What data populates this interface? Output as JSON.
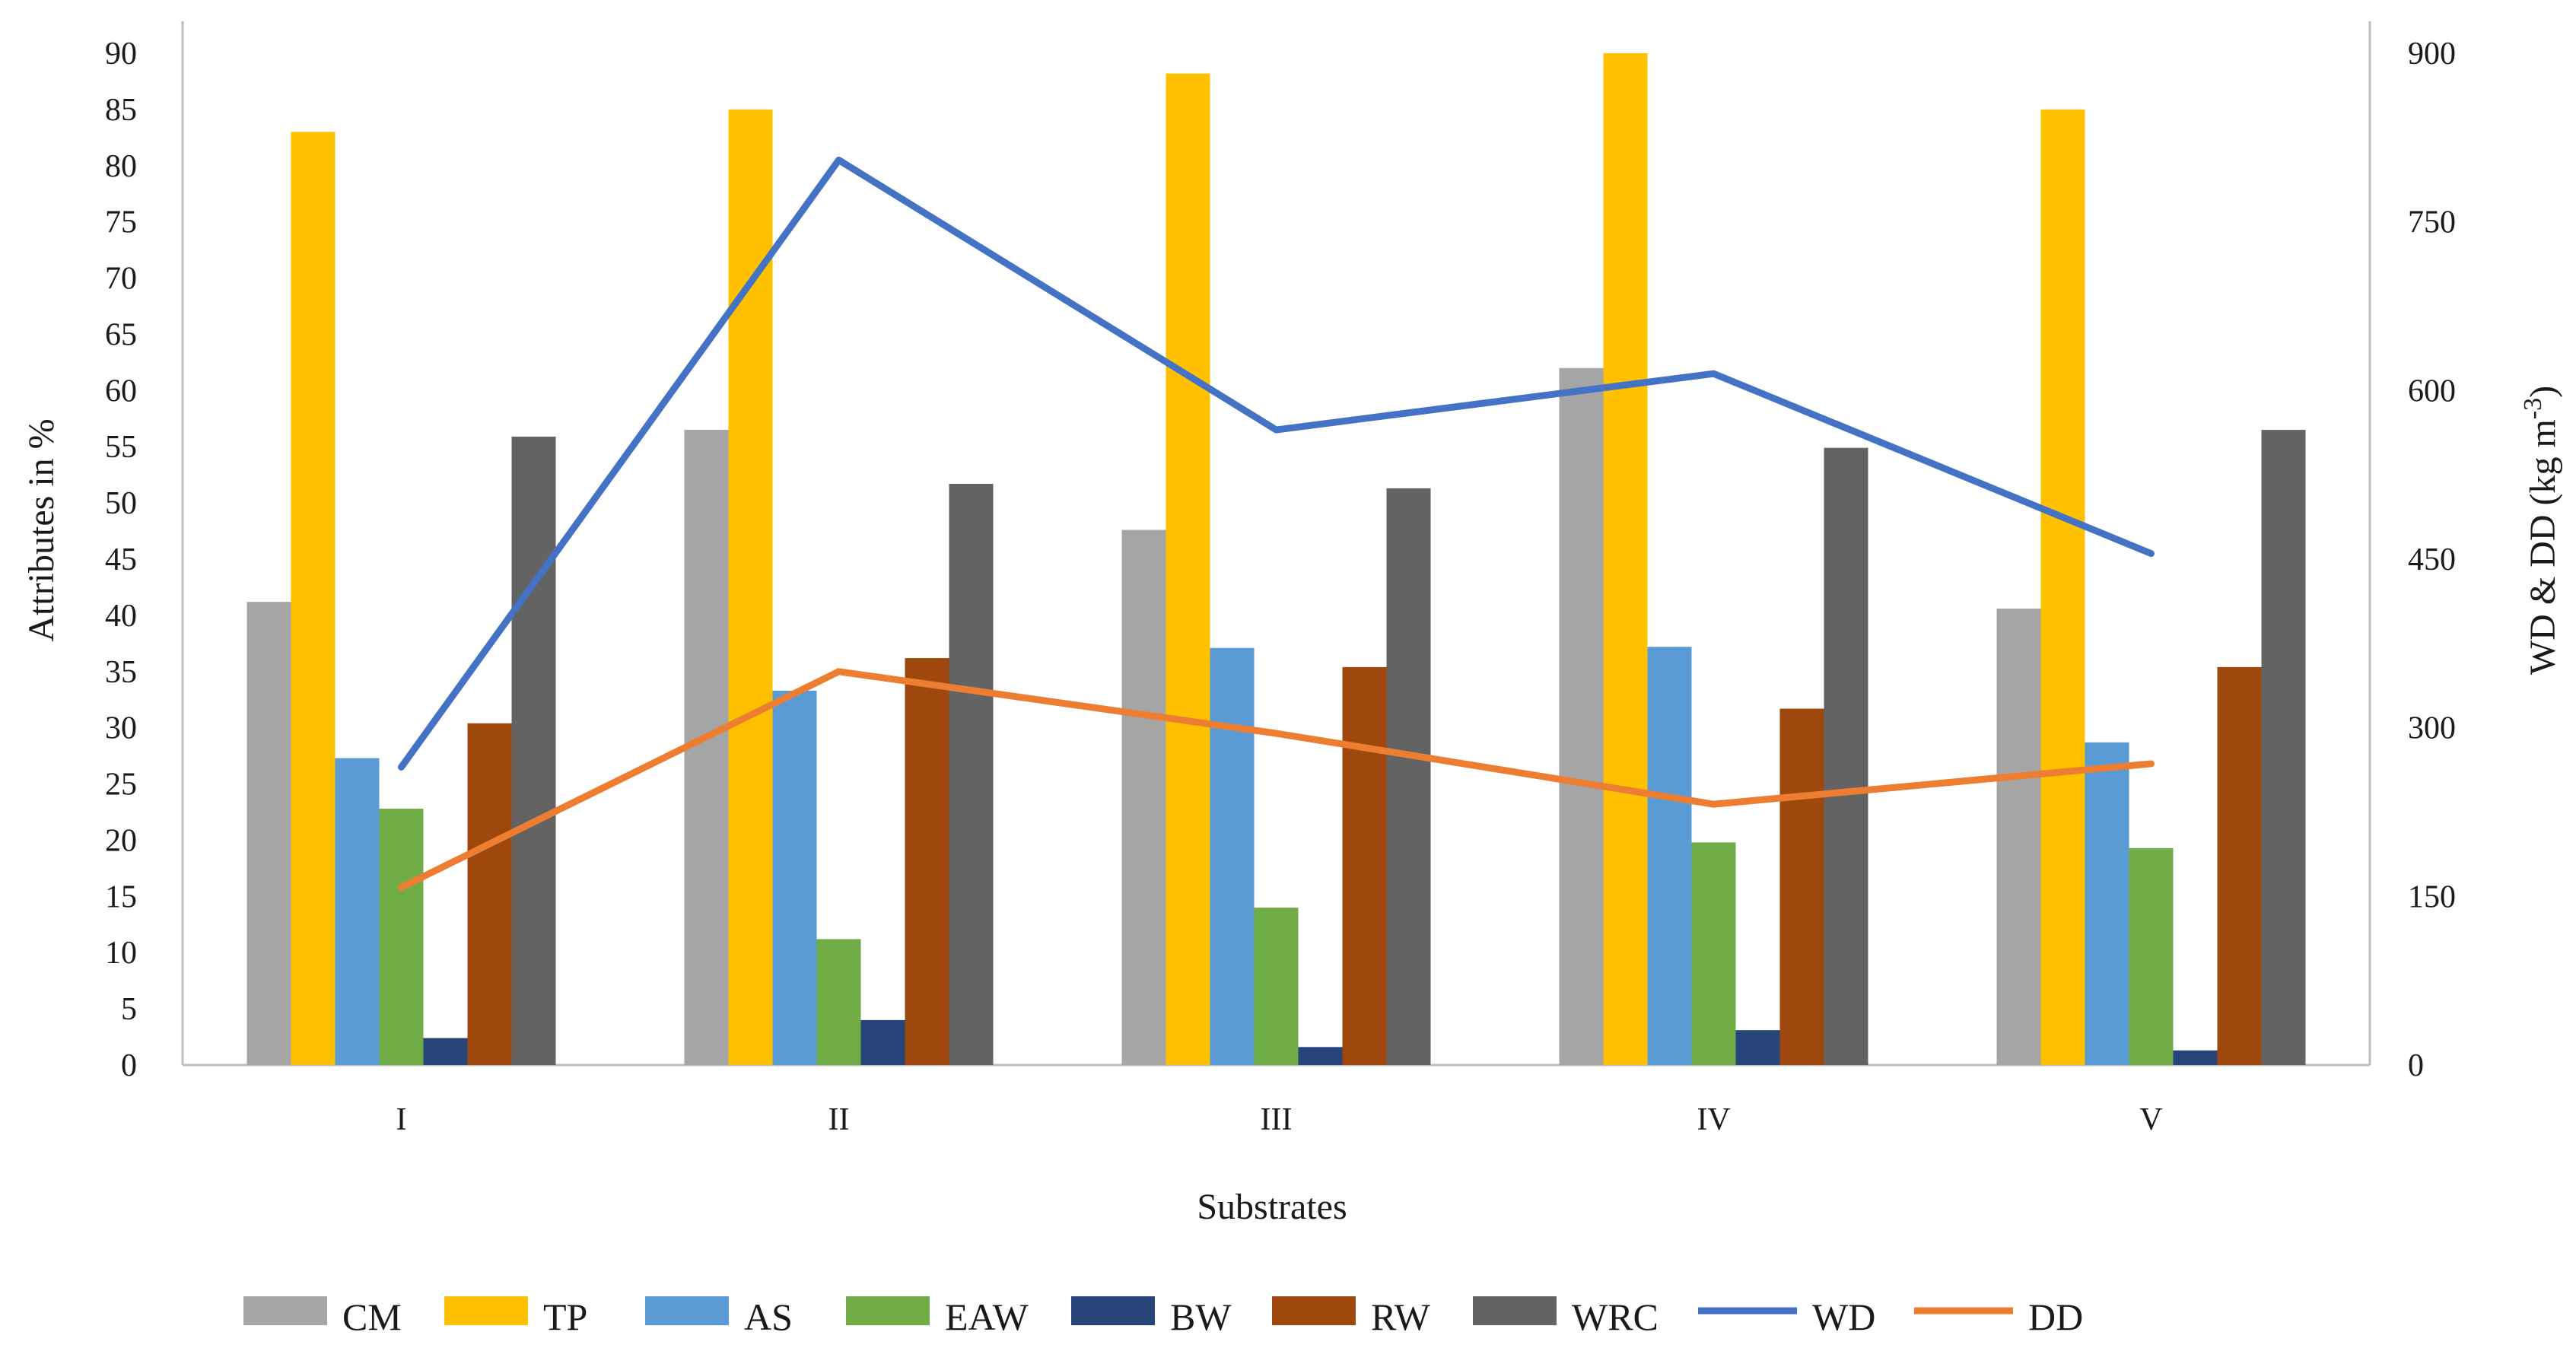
{
  "chart_data": {
    "type": "bar",
    "categories": [
      "I",
      "II",
      "III",
      "IV",
      "V"
    ],
    "xlabel": "Substrates",
    "ylabel": "Attributes in %",
    "y2label_main": "WD & DD (kg m",
    "y2label_sup": "-3",
    "y2label_close": ")",
    "ylim": [
      0,
      90
    ],
    "y2lim": [
      0,
      900
    ],
    "yticks": [
      0,
      5,
      10,
      15,
      20,
      25,
      30,
      35,
      40,
      45,
      50,
      55,
      60,
      65,
      70,
      75,
      80,
      85,
      90
    ],
    "y2ticks": [
      0,
      150,
      300,
      450,
      600,
      750,
      900
    ],
    "grid": false,
    "legend_position": "bottom",
    "series": [
      {
        "name": "CM",
        "type": "bar",
        "axis": "left",
        "color": "#a5a5a5",
        "values": [
          41.2,
          56.5,
          47.6,
          62.0,
          40.6
        ]
      },
      {
        "name": "TP",
        "type": "bar",
        "axis": "left",
        "color": "#ffc000",
        "values": [
          83.0,
          85.0,
          88.2,
          90.0,
          85.0
        ]
      },
      {
        "name": "AS",
        "type": "bar",
        "axis": "left",
        "color": "#5b9bd5",
        "values": [
          27.3,
          33.3,
          37.1,
          37.2,
          28.7
        ]
      },
      {
        "name": "EAW",
        "type": "bar",
        "axis": "left",
        "color": "#70ad47",
        "values": [
          22.8,
          11.2,
          14.0,
          19.8,
          19.3
        ]
      },
      {
        "name": "BW",
        "type": "bar",
        "axis": "left",
        "color": "#264478",
        "values": [
          2.4,
          4.0,
          1.6,
          3.1,
          1.3
        ]
      },
      {
        "name": "RW",
        "type": "bar",
        "axis": "left",
        "color": "#9e480e",
        "values": [
          30.4,
          36.2,
          35.4,
          31.7,
          35.4
        ]
      },
      {
        "name": "WRC",
        "type": "bar",
        "axis": "left",
        "color": "#636363",
        "values": [
          55.9,
          51.7,
          51.3,
          54.9,
          56.5
        ]
      },
      {
        "name": "WD",
        "type": "line",
        "axis": "right",
        "color": "#4472c4",
        "values": [
          265,
          805,
          565,
          615,
          455
        ]
      },
      {
        "name": "DD",
        "type": "line",
        "axis": "right",
        "color": "#ed7d31",
        "values": [
          158,
          350,
          295,
          232,
          268
        ]
      }
    ]
  }
}
